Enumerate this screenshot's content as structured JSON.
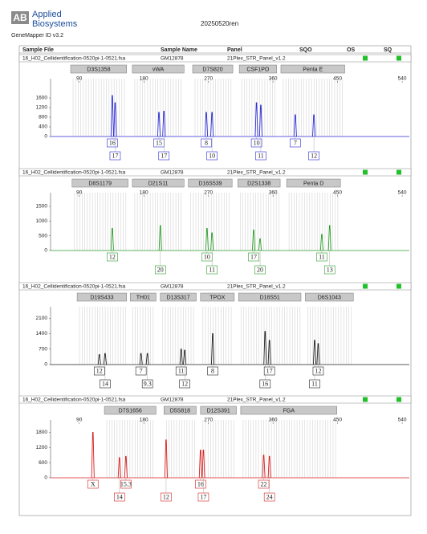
{
  "header": {
    "logo": "AB",
    "brand": [
      "Applied",
      "Biosystems"
    ],
    "title": "20250520ren",
    "software": "GeneMapper ID v3.2",
    "columns": [
      "Sample File",
      "Sample Name",
      "Panel",
      "SQO",
      "OS",
      "SQ"
    ]
  },
  "chart_data": [
    {
      "type": "electropherogram",
      "sample_file": "16_H02_Cellidentification-0520pi-1-0521.fsa",
      "sample_name": "GM12878",
      "panel": "21Plex_STR_Panel_v1.2",
      "color": "#2b2bd6",
      "markers": [
        {
          "name": "D3S1358",
          "range": [
            78,
            156
          ]
        },
        {
          "name": "vWA",
          "range": [
            164,
            236
          ]
        },
        {
          "name": "D7S820",
          "range": [
            248,
            304
          ]
        },
        {
          "name": "CSF1PO",
          "range": [
            313,
            365
          ]
        },
        {
          "name": "Penta E",
          "range": [
            371,
            460
          ]
        }
      ],
      "x": [
        136,
        140,
        201,
        208,
        267,
        275,
        337,
        343,
        391,
        417
      ],
      "values": [
        1700,
        1400,
        1000,
        1050,
        1000,
        1000,
        1400,
        1300,
        900,
        900
      ],
      "labels": [
        "16",
        "17",
        "15",
        "17",
        "8",
        "10",
        "10",
        "11",
        "7",
        "12"
      ],
      "xlim": [
        50,
        550
      ],
      "xticks": [
        90,
        180,
        270,
        360,
        450,
        540
      ],
      "ylim": [
        0,
        2200
      ],
      "yticks": [
        0,
        400,
        800,
        1200,
        1600
      ]
    },
    {
      "type": "electropherogram",
      "sample_file": "16_H02_Cellidentification-0520pi-1-0521.fsa",
      "sample_name": "GM12878",
      "panel": "21Plex_STR_Panel_v1.2",
      "color": "#2a9d2a",
      "markers": [
        {
          "name": "D8S1179",
          "range": [
            80,
            158
          ]
        },
        {
          "name": "D21S11",
          "range": [
            164,
            236
          ]
        },
        {
          "name": "D16S539",
          "range": [
            242,
            303
          ]
        },
        {
          "name": "D2S1338",
          "range": [
            311,
            370
          ]
        },
        {
          "name": "Penta D",
          "range": [
            379,
            454
          ]
        }
      ],
      "x": [
        136,
        203,
        268,
        275,
        333,
        342,
        428,
        439
      ],
      "values": [
        750,
        850,
        750,
        600,
        700,
        400,
        550,
        850
      ],
      "labels": [
        "12",
        "20",
        "10",
        "11",
        "17",
        "20",
        "11",
        "13"
      ],
      "xlim": [
        50,
        550
      ],
      "xticks": [
        90,
        180,
        270,
        360,
        450,
        540
      ],
      "ylim": [
        0,
        1800
      ],
      "yticks": [
        0,
        500,
        1000,
        1500
      ]
    },
    {
      "type": "electropherogram",
      "sample_file": "16_H02_Cellidentification-0520pi-1-0521.fsa",
      "sample_name": "GM12878",
      "panel": "21Plex_STR_Panel_v1.2",
      "color": "#222222",
      "markers": [
        {
          "name": "D19S433",
          "range": [
            87,
            156
          ]
        },
        {
          "name": "TH01",
          "range": [
            161,
            197
          ]
        },
        {
          "name": "D13S317",
          "range": [
            203,
            253
          ]
        },
        {
          "name": "TPOX",
          "range": [
            259,
            306
          ]
        },
        {
          "name": "D18S51",
          "range": [
            312,
            399
          ]
        },
        {
          "name": "D6S1043",
          "range": [
            405,
            472
          ]
        }
      ],
      "x": [
        118,
        126,
        176,
        185,
        232,
        237,
        276,
        349,
        355,
        418,
        423
      ],
      "values": [
        450,
        500,
        500,
        500,
        700,
        650,
        1400,
        1500,
        1100,
        1100,
        950
      ],
      "labels": [
        "12",
        "14",
        "7",
        "9.3",
        "11",
        "12",
        "8",
        "16",
        "17",
        "11",
        "12"
      ],
      "xlim": [
        50,
        550
      ],
      "ylim": [
        0,
        2400
      ],
      "yticks": [
        0,
        700,
        1400,
        2100
      ]
    },
    {
      "type": "electropherogram",
      "sample_file": "16_H02_Cellidentification-0520pi-1-0521.fsa",
      "sample_name": "GM12878",
      "panel": "21Plex_STR_Panel_v1.2",
      "color": "#d62020",
      "markers": [
        {
          "name": "D7S1656",
          "range": [
            125,
            197
          ]
        },
        {
          "name": "D5S818",
          "range": [
            208,
            253
          ]
        },
        {
          "name": "D12S391",
          "range": [
            259,
            309
          ]
        },
        {
          "name": "FGA",
          "range": [
            315,
            449
          ]
        }
      ],
      "x": [
        109,
        146,
        155,
        211,
        259,
        263,
        347,
        355
      ],
      "values": [
        1800,
        800,
        850,
        1500,
        1100,
        1100,
        900,
        850
      ],
      "labels": [
        "X",
        "14",
        "15.3",
        "12",
        "16",
        "17",
        "22",
        "24"
      ],
      "xlim": [
        50,
        550
      ],
      "xticks": [
        90,
        180,
        270,
        360,
        450,
        540
      ],
      "ylim": [
        0,
        2100
      ],
      "yticks": [
        0,
        600,
        1200,
        1800
      ]
    }
  ]
}
